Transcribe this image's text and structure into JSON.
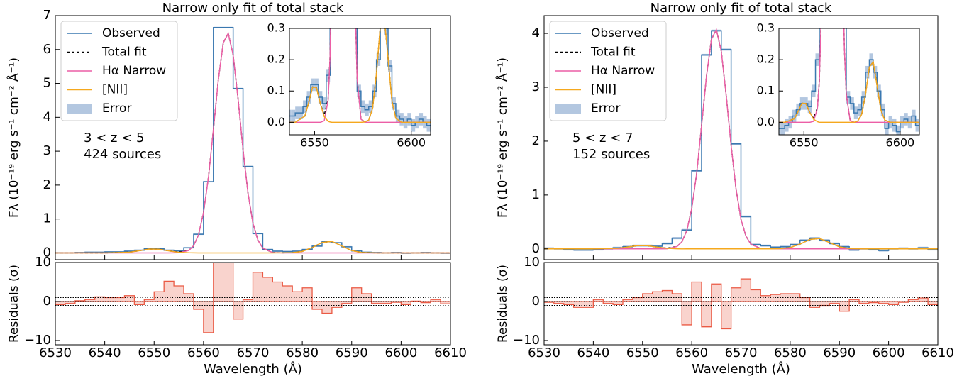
{
  "chart_data": [
    {
      "type": "line",
      "title": "Narrow only fit of total stack",
      "ylabel": "Fλ (10⁻¹⁹ erg s⁻¹ cm⁻² Å⁻¹)",
      "xlabel": "Wavelength (Å)",
      "annotation": [
        "3 < z < 5",
        "424 sources"
      ],
      "xlim": [
        6530,
        6610
      ],
      "xticks": [
        6530,
        6540,
        6550,
        6560,
        6570,
        6580,
        6590,
        6600,
        6610
      ],
      "ylim": [
        -0.2,
        7
      ],
      "yticks": [
        0,
        1,
        2,
        3,
        4,
        5,
        6,
        7
      ],
      "series": [
        {
          "name": "Observed",
          "color": "#3a78b0",
          "style": "step",
          "x": [
            6531,
            6533,
            6535,
            6537,
            6539,
            6541,
            6543,
            6545,
            6547,
            6549,
            6551,
            6553,
            6555,
            6557,
            6559,
            6561,
            6563,
            6565,
            6567,
            6569,
            6571,
            6573,
            6575,
            6577,
            6579,
            6581,
            6583,
            6585,
            6587,
            6589,
            6591,
            6593,
            6595,
            6597,
            6599,
            6601,
            6603,
            6605,
            6607,
            6609
          ],
          "values": [
            0,
            0,
            0.01,
            0.02,
            0.02,
            0.03,
            0.03,
            0.05,
            0.08,
            0.12,
            0.12,
            0.08,
            0.06,
            0.15,
            0.55,
            2.1,
            6.65,
            6.65,
            4.85,
            2.55,
            0.57,
            0.1,
            0.05,
            0.04,
            0.05,
            0.1,
            0.2,
            0.33,
            0.3,
            0.18,
            0.06,
            0.02,
            0.01,
            0,
            0.01,
            -0.01,
            0,
            0.01,
            0,
            -0.01
          ]
        },
        {
          "name": "Total fit",
          "color": "#000000",
          "style": "dashed",
          "x": [
            6530,
            6540,
            6545,
            6547,
            6549,
            6551,
            6553,
            6555,
            6557,
            6558,
            6559,
            6560,
            6561,
            6562,
            6563,
            6564,
            6565,
            6566,
            6567,
            6568,
            6569,
            6570,
            6571,
            6572,
            6574,
            6576,
            6578,
            6580,
            6582,
            6584,
            6586,
            6588,
            6590,
            6592,
            6595,
            6600,
            6610
          ],
          "values": [
            0,
            0,
            0.02,
            0.064,
            0.113,
            0.11,
            0.059,
            0.023,
            0.073,
            0.211,
            0.54,
            1.19,
            2.23,
            3.64,
            5.11,
            6.2,
            6.48,
            5.84,
            4.54,
            3.05,
            1.77,
            0.88,
            0.38,
            0.14,
            0.01,
            0.001,
            0.007,
            0.044,
            0.156,
            0.308,
            0.338,
            0.204,
            0.068,
            0.013,
            0,
            0,
            0
          ]
        },
        {
          "name": "Hα Narrow",
          "color": "#ec5fa6",
          "style": "solid",
          "x": [
            6530,
            6540,
            6545,
            6547,
            6549,
            6551,
            6553,
            6555,
            6557,
            6558,
            6559,
            6560,
            6561,
            6562,
            6563,
            6564,
            6565,
            6566,
            6567,
            6568,
            6569,
            6570,
            6571,
            6572,
            6574,
            6576,
            6578,
            6580,
            6582,
            6584,
            6586,
            6588,
            6590,
            6592,
            6595,
            6600,
            6610
          ],
          "values": [
            0,
            0,
            0,
            0,
            0,
            0,
            0,
            0.005,
            0.07,
            0.21,
            0.54,
            1.19,
            2.23,
            3.64,
            5.11,
            6.2,
            6.48,
            5.84,
            4.54,
            3.05,
            1.77,
            0.88,
            0.38,
            0.14,
            0.01,
            0,
            0,
            0,
            0,
            0,
            0,
            0,
            0,
            0,
            0,
            0,
            0
          ]
        },
        {
          "name": "[NII]",
          "color": "#f5a81e",
          "style": "solid",
          "x": [
            6530,
            6540,
            6545,
            6547,
            6549,
            6551,
            6553,
            6555,
            6557,
            6558,
            6559,
            6560,
            6561,
            6562,
            6563,
            6564,
            6565,
            6566,
            6567,
            6568,
            6569,
            6570,
            6571,
            6572,
            6574,
            6576,
            6578,
            6580,
            6582,
            6584,
            6586,
            6588,
            6590,
            6592,
            6595,
            6600,
            6610
          ],
          "values": [
            0,
            0,
            0.02,
            0.064,
            0.113,
            0.11,
            0.059,
            0.018,
            0.003,
            0.001,
            0,
            0,
            0,
            0,
            0,
            0,
            0,
            0,
            0,
            0,
            0,
            0,
            0,
            0,
            0,
            0.001,
            0.007,
            0.044,
            0.156,
            0.308,
            0.338,
            0.204,
            0.068,
            0.013,
            0,
            0,
            0
          ]
        },
        {
          "name": "Error",
          "color": "#b3c7e0",
          "style": "band",
          "values": [
            0.02,
            0.02,
            0.02,
            0.02,
            0.02,
            0.02,
            0.02,
            0.02,
            0.02,
            0.02,
            0.02,
            0.02,
            0.02,
            0.02,
            0.02,
            0.02,
            0.02,
            0.02,
            0.02,
            0.02,
            0.02,
            0.02,
            0.02,
            0.02,
            0.02,
            0.02,
            0.02,
            0.02,
            0.02,
            0.02,
            0.02,
            0.02,
            0.02,
            0.02,
            0.02,
            0.02,
            0.02,
            0.02,
            0.02,
            0.02
          ]
        }
      ],
      "inset": {
        "xlim": [
          6537,
          6610
        ],
        "xticks": [
          6550,
          6600
        ],
        "ylim": [
          -0.04,
          0.3
        ],
        "yticks": [
          {
            "value": 0,
            "label": "0.0"
          },
          0.1,
          0.2,
          0.3
        ]
      },
      "residuals": {
        "ylabel": "Residuals (σ)",
        "ylim": [
          -11.1,
          10
        ],
        "yticks": [
          {
            "value": -10,
            "label": "−10"
          },
          0,
          10
        ],
        "hlines": [
          -1,
          0,
          1
        ],
        "color": "#ea5a44",
        "fill": "#f9d3cd",
        "values": [
          -0.8,
          -0.5,
          0.2,
          0.5,
          1.2,
          1,
          1,
          1.5,
          -0.8,
          0.5,
          2.5,
          5.2,
          4,
          2,
          -2,
          -8,
          10,
          10,
          -4.5,
          0.5,
          7.5,
          6.2,
          5,
          4,
          2.5,
          3.5,
          -2,
          -3,
          -1.5,
          -0.5,
          3.5,
          2,
          -0.5,
          -0.5,
          -0.2,
          -0.8,
          0.1,
          -0.3,
          0.5,
          -0.6
        ]
      }
    },
    {
      "type": "line",
      "title": "Narrow only fit of total stack",
      "ylabel": "Fλ (10⁻¹⁹ erg s⁻¹ cm⁻² Å⁻¹)",
      "xlabel": "Wavelength (Å)",
      "annotation": [
        "5 < z < 7",
        "152 sources"
      ],
      "xlim": [
        6530,
        6610
      ],
      "xticks": [
        6530,
        6540,
        6550,
        6560,
        6570,
        6580,
        6590,
        6600,
        6610
      ],
      "ylim": [
        -0.2,
        4.33
      ],
      "yticks": [
        0,
        1,
        2,
        3,
        4
      ],
      "series": [
        {
          "name": "Observed",
          "color": "#3a78b0",
          "style": "step",
          "x": [
            6531,
            6533,
            6535,
            6537,
            6539,
            6541,
            6543,
            6545,
            6547,
            6549,
            6551,
            6553,
            6555,
            6557,
            6559,
            6561,
            6563,
            6565,
            6567,
            6569,
            6571,
            6573,
            6575,
            6577,
            6579,
            6581,
            6583,
            6585,
            6587,
            6589,
            6591,
            6593,
            6595,
            6597,
            6599,
            6601,
            6603,
            6605,
            6607,
            6609
          ],
          "values": [
            0.01,
            0,
            -0.01,
            -0.02,
            -0.02,
            -0.01,
            0,
            0.02,
            0.04,
            0.06,
            0.06,
            0.05,
            0.1,
            0.2,
            0.35,
            1.45,
            3.6,
            4.05,
            3.7,
            1.95,
            0.6,
            0.08,
            0.06,
            0.03,
            0.04,
            0.08,
            0.16,
            0.2,
            0.16,
            0.1,
            0.04,
            -0.02,
            0,
            -0.01,
            -0.03,
            0,
            0.01,
            0,
            0.02,
            -0.01
          ]
        },
        {
          "name": "Total fit",
          "color": "#000000",
          "style": "dashed",
          "x": [
            6530,
            6540,
            6545,
            6547,
            6549,
            6551,
            6553,
            6555,
            6557,
            6558,
            6559,
            6560,
            6561,
            6562,
            6563,
            6564,
            6565,
            6566,
            6567,
            6568,
            6569,
            6570,
            6571,
            6572,
            6574,
            6576,
            6578,
            6580,
            6582,
            6584,
            6586,
            6588,
            6590,
            6592,
            6595,
            6600,
            6610
          ],
          "values": [
            0,
            0,
            0.011,
            0.035,
            0.061,
            0.06,
            0.032,
            0.013,
            0.046,
            0.13,
            0.34,
            0.75,
            1.4,
            2.29,
            3.21,
            3.89,
            4.07,
            3.67,
            2.85,
            1.92,
            1.11,
            0.55,
            0.24,
            0.09,
            0.006,
            0,
            0.004,
            0.025,
            0.089,
            0.176,
            0.193,
            0.117,
            0.039,
            0.007,
            0,
            0,
            0
          ]
        },
        {
          "name": "Hα Narrow",
          "color": "#ec5fa6",
          "style": "solid",
          "x": [
            6530,
            6540,
            6545,
            6547,
            6549,
            6551,
            6553,
            6555,
            6557,
            6558,
            6559,
            6560,
            6561,
            6562,
            6563,
            6564,
            6565,
            6566,
            6567,
            6568,
            6569,
            6570,
            6571,
            6572,
            6574,
            6576,
            6578,
            6580,
            6582,
            6584,
            6586,
            6588,
            6590,
            6592,
            6595,
            6600,
            6610
          ],
          "values": [
            0,
            0,
            0,
            0,
            0,
            0,
            0,
            0.003,
            0.044,
            0.13,
            0.34,
            0.75,
            1.4,
            2.29,
            3.21,
            3.89,
            4.07,
            3.67,
            2.85,
            1.92,
            1.11,
            0.55,
            0.24,
            0.09,
            0.006,
            0,
            0,
            0,
            0,
            0,
            0,
            0,
            0,
            0,
            0,
            0,
            0
          ]
        },
        {
          "name": "[NII]",
          "color": "#f5a81e",
          "style": "solid",
          "x": [
            6530,
            6540,
            6545,
            6547,
            6549,
            6551,
            6553,
            6555,
            6557,
            6558,
            6559,
            6560,
            6561,
            6562,
            6563,
            6564,
            6565,
            6566,
            6567,
            6568,
            6569,
            6570,
            6571,
            6572,
            6574,
            6576,
            6578,
            6580,
            6582,
            6584,
            6586,
            6588,
            6590,
            6592,
            6595,
            6600,
            6610
          ],
          "values": [
            0,
            0,
            0.011,
            0.035,
            0.061,
            0.06,
            0.032,
            0.01,
            0.002,
            0,
            0,
            0,
            0,
            0,
            0,
            0,
            0,
            0,
            0,
            0,
            0,
            0,
            0,
            0,
            0,
            0,
            0.004,
            0.025,
            0.089,
            0.176,
            0.193,
            0.117,
            0.039,
            0.007,
            0,
            0,
            0
          ]
        },
        {
          "name": "Error",
          "color": "#b3c7e0",
          "style": "band",
          "values": [
            0.02,
            0.02,
            0.02,
            0.02,
            0.02,
            0.02,
            0.02,
            0.02,
            0.02,
            0.02,
            0.02,
            0.02,
            0.02,
            0.02,
            0.02,
            0.02,
            0.02,
            0.02,
            0.02,
            0.02,
            0.02,
            0.02,
            0.02,
            0.02,
            0.02,
            0.02,
            0.02,
            0.02,
            0.02,
            0.02,
            0.02,
            0.02,
            0.02,
            0.02,
            0.02,
            0.02,
            0.02,
            0.02,
            0.02,
            0.02
          ]
        }
      ],
      "inset": {
        "xlim": [
          6537,
          6610
        ],
        "xticks": [
          6550,
          6600
        ],
        "ylim": [
          -0.04,
          0.3
        ],
        "yticks": [
          {
            "value": 0,
            "label": "0.0"
          },
          0.1,
          0.2,
          0.3
        ]
      },
      "residuals": {
        "ylabel": "Residuals (σ)",
        "ylim": [
          -11.1,
          10
        ],
        "yticks": [
          {
            "value": -10,
            "label": "−10"
          },
          0,
          10
        ],
        "hlines": [
          -1,
          0,
          1
        ],
        "color": "#ea5a44",
        "fill": "#f9d3cd",
        "values": [
          -0.2,
          -0.5,
          -0.8,
          -1.5,
          -1.5,
          0.5,
          -0.5,
          -0.8,
          0.5,
          1,
          2,
          2.5,
          2.8,
          2,
          -6,
          5,
          -6.5,
          4.5,
          -7,
          3.5,
          5.8,
          3,
          1.5,
          1.8,
          2,
          2,
          1,
          -1.5,
          -1,
          -0.5,
          -2.5,
          0.5,
          -0.5,
          -0.3,
          -0.5,
          -0.8,
          -0.2,
          0.5,
          0.9,
          -0.8
        ]
      }
    }
  ]
}
